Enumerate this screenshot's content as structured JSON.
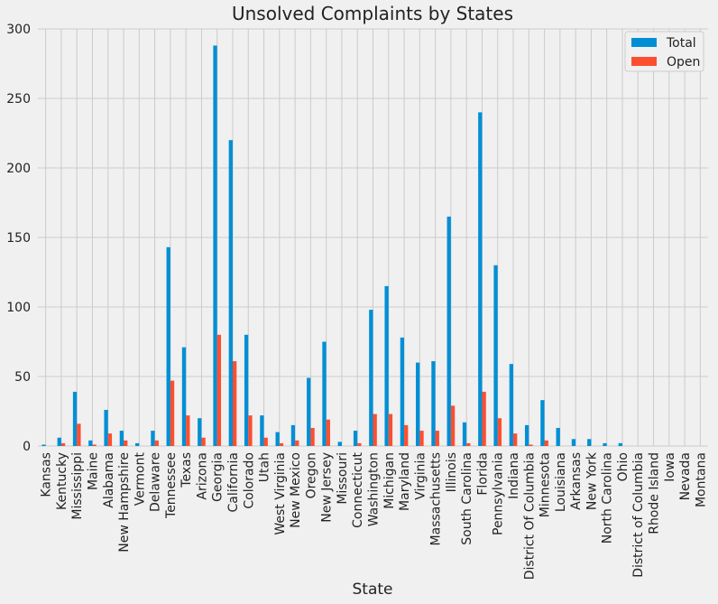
{
  "chart_data": {
    "type": "bar",
    "title": "Unsolved Complaints by States",
    "xlabel": "State",
    "ylabel": "",
    "ylim": [
      0,
      300
    ],
    "yticks": [
      0,
      50,
      100,
      150,
      200,
      250,
      300
    ],
    "grid": true,
    "legend_position": "top-right",
    "categories": [
      "Kansas",
      "Kentucky",
      "Mississippi",
      "Maine",
      "Alabama",
      "New Hampshire",
      "Vermont",
      "Delaware",
      "Tennessee",
      "Texas",
      "Arizona",
      "Georgia",
      "California",
      "Colorado",
      "Utah",
      "West Virginia",
      "New Mexico",
      "Oregon",
      "New Jersey",
      "Missouri",
      "Connecticut",
      "Washington",
      "Michigan",
      "Maryland",
      "Virginia",
      "Massachusetts",
      "Illinois",
      "South Carolina",
      "Florida",
      "Pennsylvania",
      "Indiana",
      "District Of Columbia",
      "Minnesota",
      "Louisiana",
      "Arkansas",
      "New York",
      "North Carolina",
      "Ohio",
      "District of Columbia",
      "Rhode Island",
      "Iowa",
      "Nevada",
      "Montana"
    ],
    "series": [
      {
        "name": "Total",
        "color": "#008fd5",
        "values": [
          1,
          6,
          39,
          4,
          26,
          11,
          2,
          11,
          143,
          71,
          20,
          288,
          220,
          80,
          22,
          10,
          15,
          49,
          75,
          3,
          11,
          98,
          115,
          78,
          60,
          61,
          165,
          17,
          240,
          130,
          59,
          15,
          33,
          13,
          5,
          5,
          2,
          2,
          0,
          0,
          0,
          0,
          0
        ]
      },
      {
        "name": "Open",
        "color": "#fc4f30",
        "values": [
          0,
          2,
          16,
          1,
          9,
          4,
          0,
          4,
          47,
          22,
          6,
          80,
          61,
          22,
          6,
          2,
          4,
          13,
          19,
          0,
          2,
          23,
          23,
          15,
          11,
          11,
          29,
          2,
          39,
          20,
          9,
          1,
          4,
          0,
          0,
          0,
          0,
          0,
          0,
          0,
          0,
          0,
          0
        ]
      }
    ]
  }
}
